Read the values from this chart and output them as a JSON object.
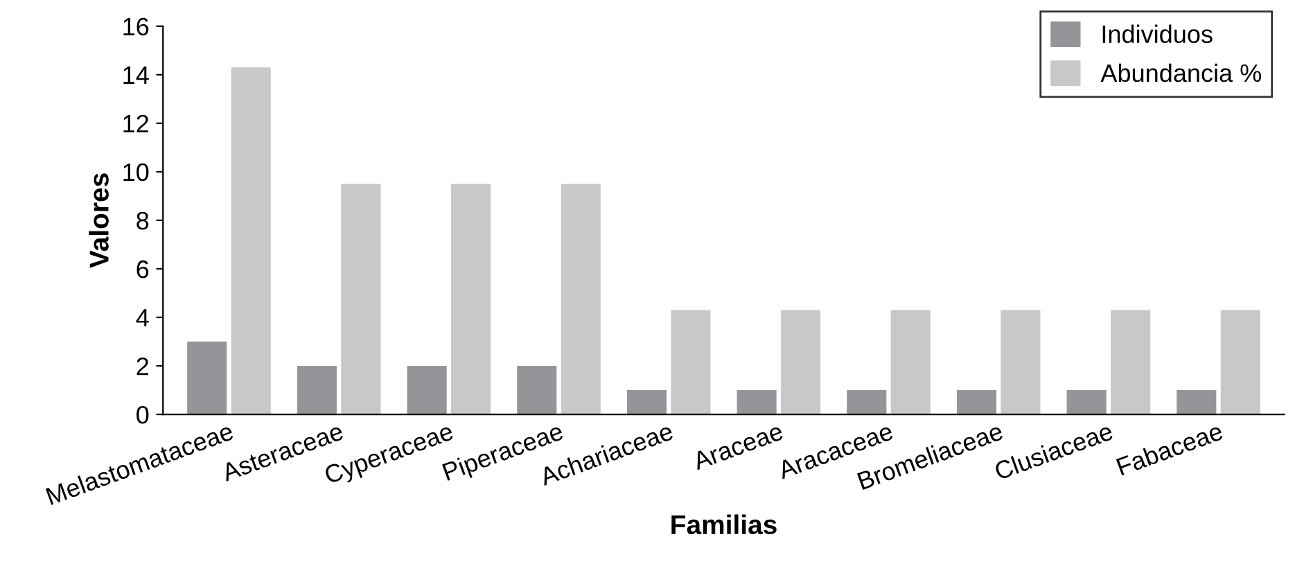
{
  "chart_data": {
    "type": "bar",
    "xlabel": "Familias",
    "ylabel": "Valores",
    "categories": [
      "Melastomataceae",
      "Asteraceae",
      "Cyperaceae",
      "Piperaceae",
      "Achariaceae",
      "Araceae",
      "Aracaceae",
      "Bromeliaceae",
      "Clusiaceae",
      "Fabaceae"
    ],
    "series": [
      {
        "name": "Individuos",
        "color": "#939598",
        "values": [
          3,
          2,
          2,
          2,
          1,
          1,
          1,
          1,
          1,
          1
        ]
      },
      {
        "name": "Abundancia %",
        "color": "#c7c8ca",
        "values": [
          14.3,
          9.5,
          9.5,
          9.5,
          4.3,
          4.3,
          4.3,
          4.3,
          4.3,
          4.3
        ]
      }
    ],
    "ylim": [
      0,
      16
    ],
    "yticks": [
      0,
      2,
      4,
      6,
      8,
      10,
      12,
      14,
      16
    ],
    "grid": false,
    "legend": "top right"
  }
}
